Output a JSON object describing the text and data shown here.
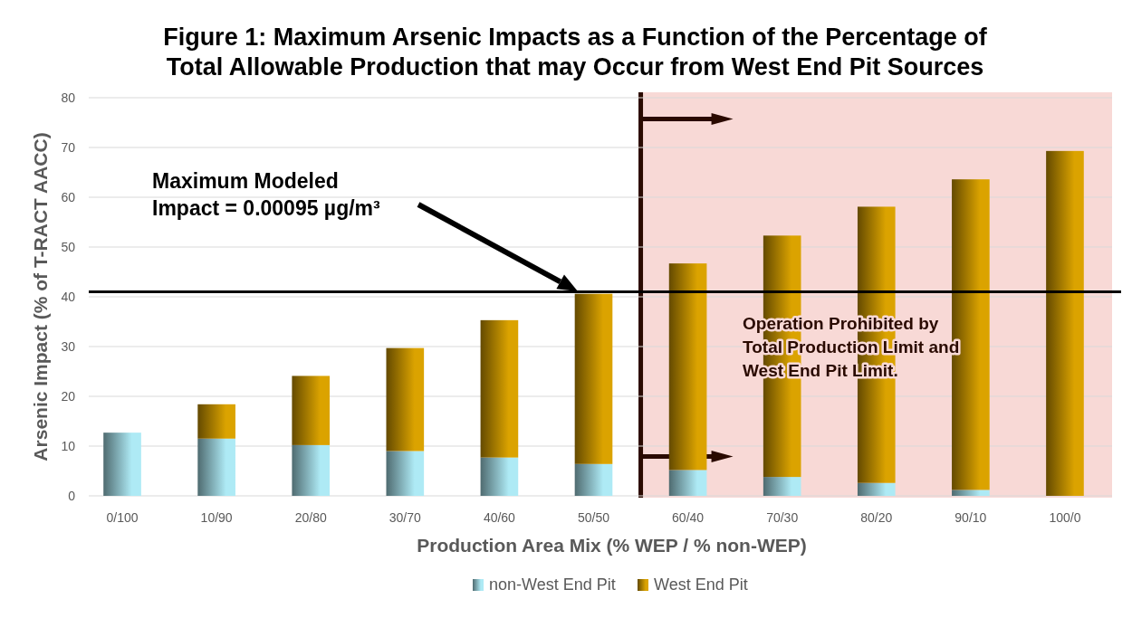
{
  "chart_data": {
    "type": "bar",
    "title": "Figure 1: Maximum Arsenic Impacts as a Function of the Percentage of Total Allowable Production that may Occur from West End Pit Sources",
    "xlabel": "Production Area Mix (% WEP / % non-WEP)",
    "ylabel": "Arsenic Impact (% of T-RACT AACC)",
    "categories": [
      "0/100",
      "10/90",
      "20/80",
      "30/70",
      "40/60",
      "50/50",
      "60/40",
      "70/30",
      "80/20",
      "90/10",
      "100/0"
    ],
    "stacked": true,
    "series": [
      {
        "name": "non-West End Pit",
        "color": "#aeeaf5",
        "values": [
          12.7,
          11.5,
          10.2,
          9.0,
          7.7,
          6.4,
          5.2,
          3.8,
          2.6,
          1.2,
          0
        ]
      },
      {
        "name": "West End Pit",
        "color": "#dba300",
        "values": [
          0,
          6.9,
          13.9,
          20.7,
          27.6,
          34.2,
          41.5,
          48.5,
          55.5,
          62.4,
          69.3
        ]
      }
    ],
    "ylim": [
      0,
      80
    ],
    "yticks": [
      0,
      10,
      20,
      30,
      40,
      50,
      60,
      70,
      80
    ],
    "grid": "y",
    "legend": "bottom",
    "ref_lines": [
      {
        "axis": "y",
        "value": 41,
        "color": "#000000"
      }
    ],
    "bands": [
      {
        "axis": "x",
        "from": "60/40",
        "to": "100/0",
        "color": "#f8d9d6"
      }
    ],
    "annotations": [
      "Maximum Modeled Impact = 0.00095 µg/m³",
      "Operation Prohibited by Total Production Limit and West End Pit Limit."
    ]
  }
}
